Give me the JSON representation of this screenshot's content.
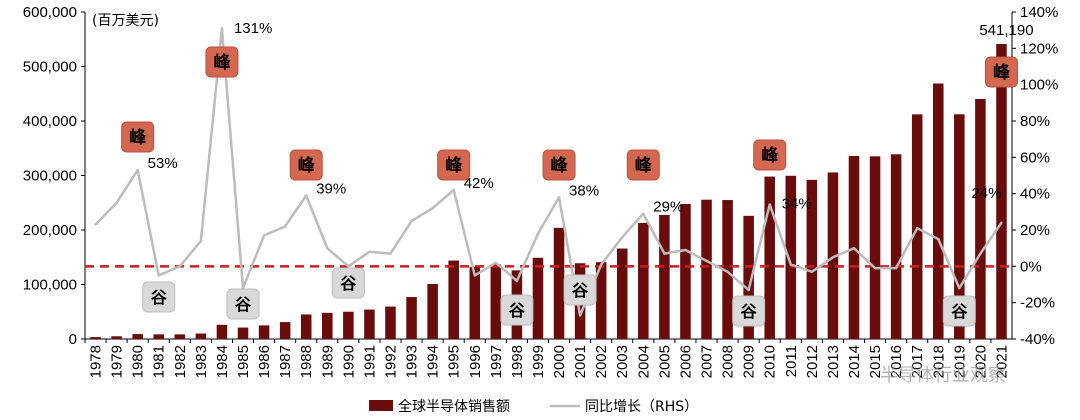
{
  "chart_data": {
    "type": "bar+line",
    "unit_label": "(百万美元)",
    "categories": [
      "1978",
      "1979",
      "1980",
      "1981",
      "1982",
      "1983",
      "1984",
      "1985",
      "1986",
      "1987",
      "1988",
      "1989",
      "1990",
      "1991",
      "1992",
      "1993",
      "1994",
      "1995",
      "1996",
      "1997",
      "1998",
      "1999",
      "2000",
      "2001",
      "2002",
      "2003",
      "2004",
      "2005",
      "2006",
      "2007",
      "2008",
      "2009",
      "2010",
      "2011",
      "2012",
      "2013",
      "2014",
      "2015",
      "2016",
      "2017",
      "2018",
      "2019",
      "2020",
      "2021"
    ],
    "series": [
      {
        "name": "全球半导体销售额",
        "type": "bar",
        "axis": "left",
        "color": "#6b0c0c",
        "values": [
          3500,
          5000,
          9000,
          8500,
          8500,
          10000,
          26000,
          21000,
          25000,
          31000,
          45000,
          48000,
          50000,
          54000,
          59500,
          77000,
          101000,
          144000,
          132000,
          137000,
          126000,
          149000,
          204000,
          139000,
          141000,
          166000,
          213000,
          227500,
          247700,
          255600,
          255000,
          226000,
          298000,
          299500,
          292000,
          305600,
          335800,
          335200,
          338900,
          412200,
          468800,
          412300,
          440400,
          541190
        ]
      },
      {
        "name": "同比增长（RHS）",
        "type": "line",
        "axis": "right",
        "color": "#bcbcbc",
        "values": [
          23,
          35,
          53,
          -5,
          0,
          14,
          131,
          -12,
          17,
          22,
          39,
          10,
          0,
          8,
          7,
          25,
          32,
          42,
          -5,
          2,
          -8,
          18,
          38,
          -27,
          1,
          16,
          29,
          7,
          9,
          3,
          -3,
          -13,
          34,
          1,
          -3,
          5,
          10,
          -1,
          -1,
          21,
          15,
          -12,
          7,
          24
        ]
      }
    ],
    "left_axis": {
      "min": 0,
      "max": 600000,
      "ticks": [
        "0",
        "100,000",
        "200,000",
        "300,000",
        "400,000",
        "500,000",
        "600,000"
      ]
    },
    "right_axis": {
      "min": -40,
      "max": 140,
      "ticks": [
        "-40%",
        "-20%",
        "0%",
        "20%",
        "40%",
        "60%",
        "80%",
        "100%",
        "120%",
        "140%"
      ]
    },
    "reference_line": {
      "axis": "right",
      "value": 0,
      "color": "#cc1f1f",
      "style": "dashed"
    },
    "value_labels": [
      {
        "text": "541,190",
        "category": "2021"
      }
    ],
    "growth_labels": [
      {
        "text": "53%",
        "category": "1980"
      },
      {
        "text": "131%",
        "category": "1984"
      },
      {
        "text": "39%",
        "category": "1988"
      },
      {
        "text": "42%",
        "category": "1995"
      },
      {
        "text": "38%",
        "category": "2000"
      },
      {
        "text": "29%",
        "category": "2004"
      },
      {
        "text": "34%",
        "category": "2010"
      },
      {
        "text": "24%",
        "category": "2021"
      }
    ],
    "peak_markers": {
      "text": "峰",
      "color": "#d4674f",
      "categories": [
        "1980",
        "1984",
        "1988",
        "1995",
        "2000",
        "2004",
        "2010",
        "2021"
      ]
    },
    "trough_markers": {
      "text": "谷",
      "color": "#d9d9d9",
      "categories": [
        "1981",
        "1985",
        "1990",
        "1998",
        "2001",
        "2009",
        "2019"
      ]
    },
    "legend": {
      "position": "bottom"
    },
    "watermark": "半导体行业观察"
  }
}
